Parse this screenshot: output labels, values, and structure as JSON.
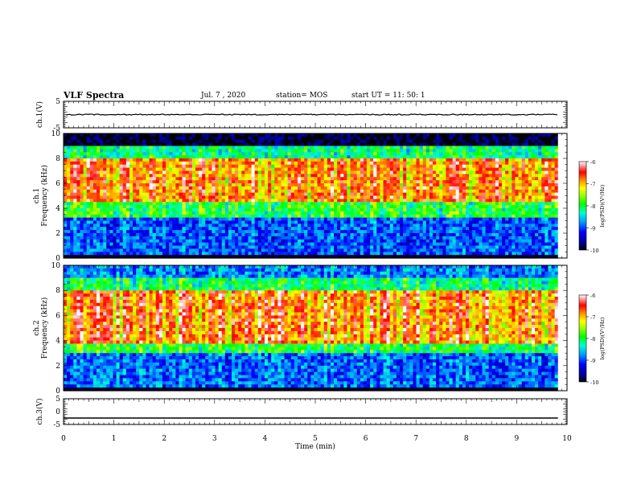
{
  "header": {
    "title": "VLF Spectra",
    "date": "Jul. 7 , 2020",
    "station": "station= MOS",
    "start_ut": "start UT =   11: 50: 1"
  },
  "chart_data": [
    {
      "type": "line",
      "ylabel": "ch.1(V)",
      "ylim": [
        -5,
        5
      ],
      "yticks": [
        "5",
        "-5"
      ],
      "xlim": [
        0,
        10
      ],
      "series": [
        {
          "values": [
            0.0
          ]
        }
      ]
    },
    {
      "type": "heatmap",
      "ylabel_line1": "ch.1",
      "ylabel_line2": "Frequency (kHz)",
      "ylim": [
        0,
        10
      ],
      "yticks": [
        "0",
        "2",
        "4",
        "6",
        "8",
        "10"
      ],
      "xlim": [
        0,
        10
      ],
      "data_extent_min": 9.82,
      "colorbar": {
        "label": "log(PSD)(V²/Hz)",
        "range": [
          -10,
          -6
        ],
        "ticks": [
          "-6",
          "-7",
          "-8",
          "-9",
          "-10"
        ]
      }
    },
    {
      "type": "heatmap",
      "ylabel_line1": "ch.2",
      "ylabel_line2": "Frequency (kHz)",
      "ylim": [
        0,
        10
      ],
      "yticks": [
        "0",
        "2",
        "4",
        "6",
        "8",
        "10"
      ],
      "xlim": [
        0,
        10
      ],
      "data_extent_min": 9.82,
      "colorbar": {
        "label": "log(PSD)(V²/Hz)",
        "range": [
          -10,
          -6
        ],
        "ticks": [
          "-6",
          "-7",
          "-8",
          "-9",
          "-10"
        ]
      }
    },
    {
      "type": "line",
      "ylabel": "ch.3(V)",
      "ylim": [
        -5,
        5
      ],
      "yticks": [
        "5",
        "0",
        "-5"
      ],
      "xlim": [
        0,
        10
      ],
      "xlabel": "Time (min)",
      "xticks": [
        "0",
        "1",
        "2",
        "3",
        "4",
        "5",
        "6",
        "7",
        "8",
        "9",
        "10"
      ],
      "series": [
        {
          "values": [
            -2.5
          ]
        }
      ]
    }
  ]
}
